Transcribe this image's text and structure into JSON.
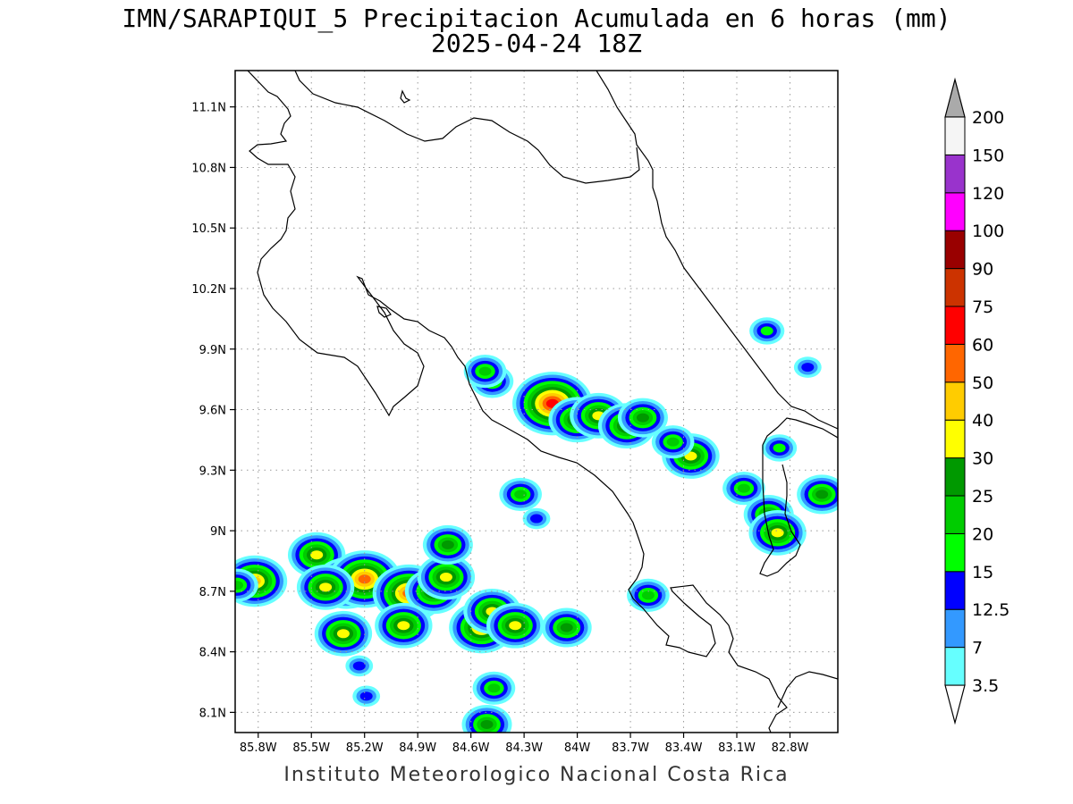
{
  "title": {
    "line1": "IMN/SARAPIQUI_5 Precipitacion Acumulada en 6 horas (mm)",
    "line2": "2025-04-24 18Z"
  },
  "footer": "Instituto Meteorologico Nacional Costa Rica",
  "map": {
    "lon_range": [
      -85.93,
      -82.53
    ],
    "lat_range": [
      8.0,
      11.28
    ],
    "lat_ticks": [
      "11.1N",
      "10.8N",
      "10.5N",
      "10.2N",
      "9.9N",
      "9.6N",
      "9.3N",
      "9N",
      "8.7N",
      "8.4N",
      "8.1N"
    ],
    "lat_tick_values": [
      11.1,
      10.8,
      10.5,
      10.2,
      9.9,
      9.6,
      9.3,
      9.0,
      8.7,
      8.4,
      8.1
    ],
    "lon_ticks": [
      "85.8W",
      "85.5W",
      "85.2W",
      "84.9W",
      "84.6W",
      "84.3W",
      "84W",
      "83.7W",
      "83.4W",
      "83.1W",
      "82.8W"
    ],
    "lon_tick_values": [
      -85.8,
      -85.5,
      -85.2,
      -84.9,
      -84.6,
      -84.3,
      -84.0,
      -83.7,
      -83.4,
      -83.1,
      -82.8
    ],
    "grid": "dotted"
  },
  "colorbar": {
    "levels": [
      "3.5",
      "7",
      "12.5",
      "15",
      "20",
      "25",
      "30",
      "40",
      "50",
      "60",
      "75",
      "90",
      "100",
      "120",
      "150",
      "200"
    ],
    "colors": [
      "#66ffff",
      "#3399ff",
      "#0000ff",
      "#00ff00",
      "#00cc00",
      "#009900",
      "#ffff00",
      "#ffcc00",
      "#ff6600",
      "#ff0000",
      "#cc3300",
      "#990000",
      "#ff00ff",
      "#9933cc",
      "#f5f5f5"
    ],
    "over_color": "#aaaaaa",
    "under_color": "#ffffff"
  },
  "precip_cells": [
    {
      "lon": -85.82,
      "lat": 8.75,
      "value": 40
    },
    {
      "lon": -85.92,
      "lat": 8.73,
      "value": 20
    },
    {
      "lon": -85.47,
      "lat": 8.88,
      "value": 30
    },
    {
      "lon": -85.3,
      "lat": 8.74,
      "value": 40
    },
    {
      "lon": -85.2,
      "lat": 8.76,
      "value": 50
    },
    {
      "lon": -85.42,
      "lat": 8.72,
      "value": 30
    },
    {
      "lon": -85.32,
      "lat": 8.49,
      "value": 30
    },
    {
      "lon": -85.23,
      "lat": 8.33,
      "value": 12.5
    },
    {
      "lon": -85.19,
      "lat": 8.18,
      "value": 12.5
    },
    {
      "lon": -84.95,
      "lat": 8.69,
      "value": 50
    },
    {
      "lon": -84.81,
      "lat": 8.7,
      "value": 30
    },
    {
      "lon": -84.74,
      "lat": 8.77,
      "value": 30
    },
    {
      "lon": -84.98,
      "lat": 8.53,
      "value": 30
    },
    {
      "lon": -84.73,
      "lat": 8.93,
      "value": 25
    },
    {
      "lon": -84.54,
      "lat": 8.52,
      "value": 40
    },
    {
      "lon": -84.48,
      "lat": 8.6,
      "value": 30
    },
    {
      "lon": -84.35,
      "lat": 8.53,
      "value": 30
    },
    {
      "lon": -84.47,
      "lat": 8.22,
      "value": 20
    },
    {
      "lon": -84.51,
      "lat": 8.04,
      "value": 25
    },
    {
      "lon": -84.06,
      "lat": 8.52,
      "value": 25
    },
    {
      "lon": -84.14,
      "lat": 9.63,
      "value": 60
    },
    {
      "lon": -84.0,
      "lat": 9.55,
      "value": 30
    },
    {
      "lon": -83.88,
      "lat": 9.57,
      "value": 30
    },
    {
      "lon": -83.72,
      "lat": 9.52,
      "value": 30
    },
    {
      "lon": -83.63,
      "lat": 9.56,
      "value": 25
    },
    {
      "lon": -84.48,
      "lat": 9.74,
      "value": 20
    },
    {
      "lon": -84.52,
      "lat": 9.79,
      "value": 20
    },
    {
      "lon": -84.32,
      "lat": 9.18,
      "value": 20
    },
    {
      "lon": -84.23,
      "lat": 9.06,
      "value": 12.5
    },
    {
      "lon": -83.36,
      "lat": 9.37,
      "value": 30
    },
    {
      "lon": -83.46,
      "lat": 9.44,
      "value": 20
    },
    {
      "lon": -83.6,
      "lat": 8.68,
      "value": 20
    },
    {
      "lon": -83.06,
      "lat": 9.21,
      "value": 20
    },
    {
      "lon": -82.92,
      "lat": 9.08,
      "value": 25
    },
    {
      "lon": -82.87,
      "lat": 8.99,
      "value": 30
    },
    {
      "lon": -82.62,
      "lat": 9.18,
      "value": 25
    },
    {
      "lon": -82.7,
      "lat": 9.81,
      "value": 12.5
    },
    {
      "lon": -82.93,
      "lat": 9.99,
      "value": 15
    },
    {
      "lon": -82.86,
      "lat": 9.41,
      "value": 15
    }
  ]
}
